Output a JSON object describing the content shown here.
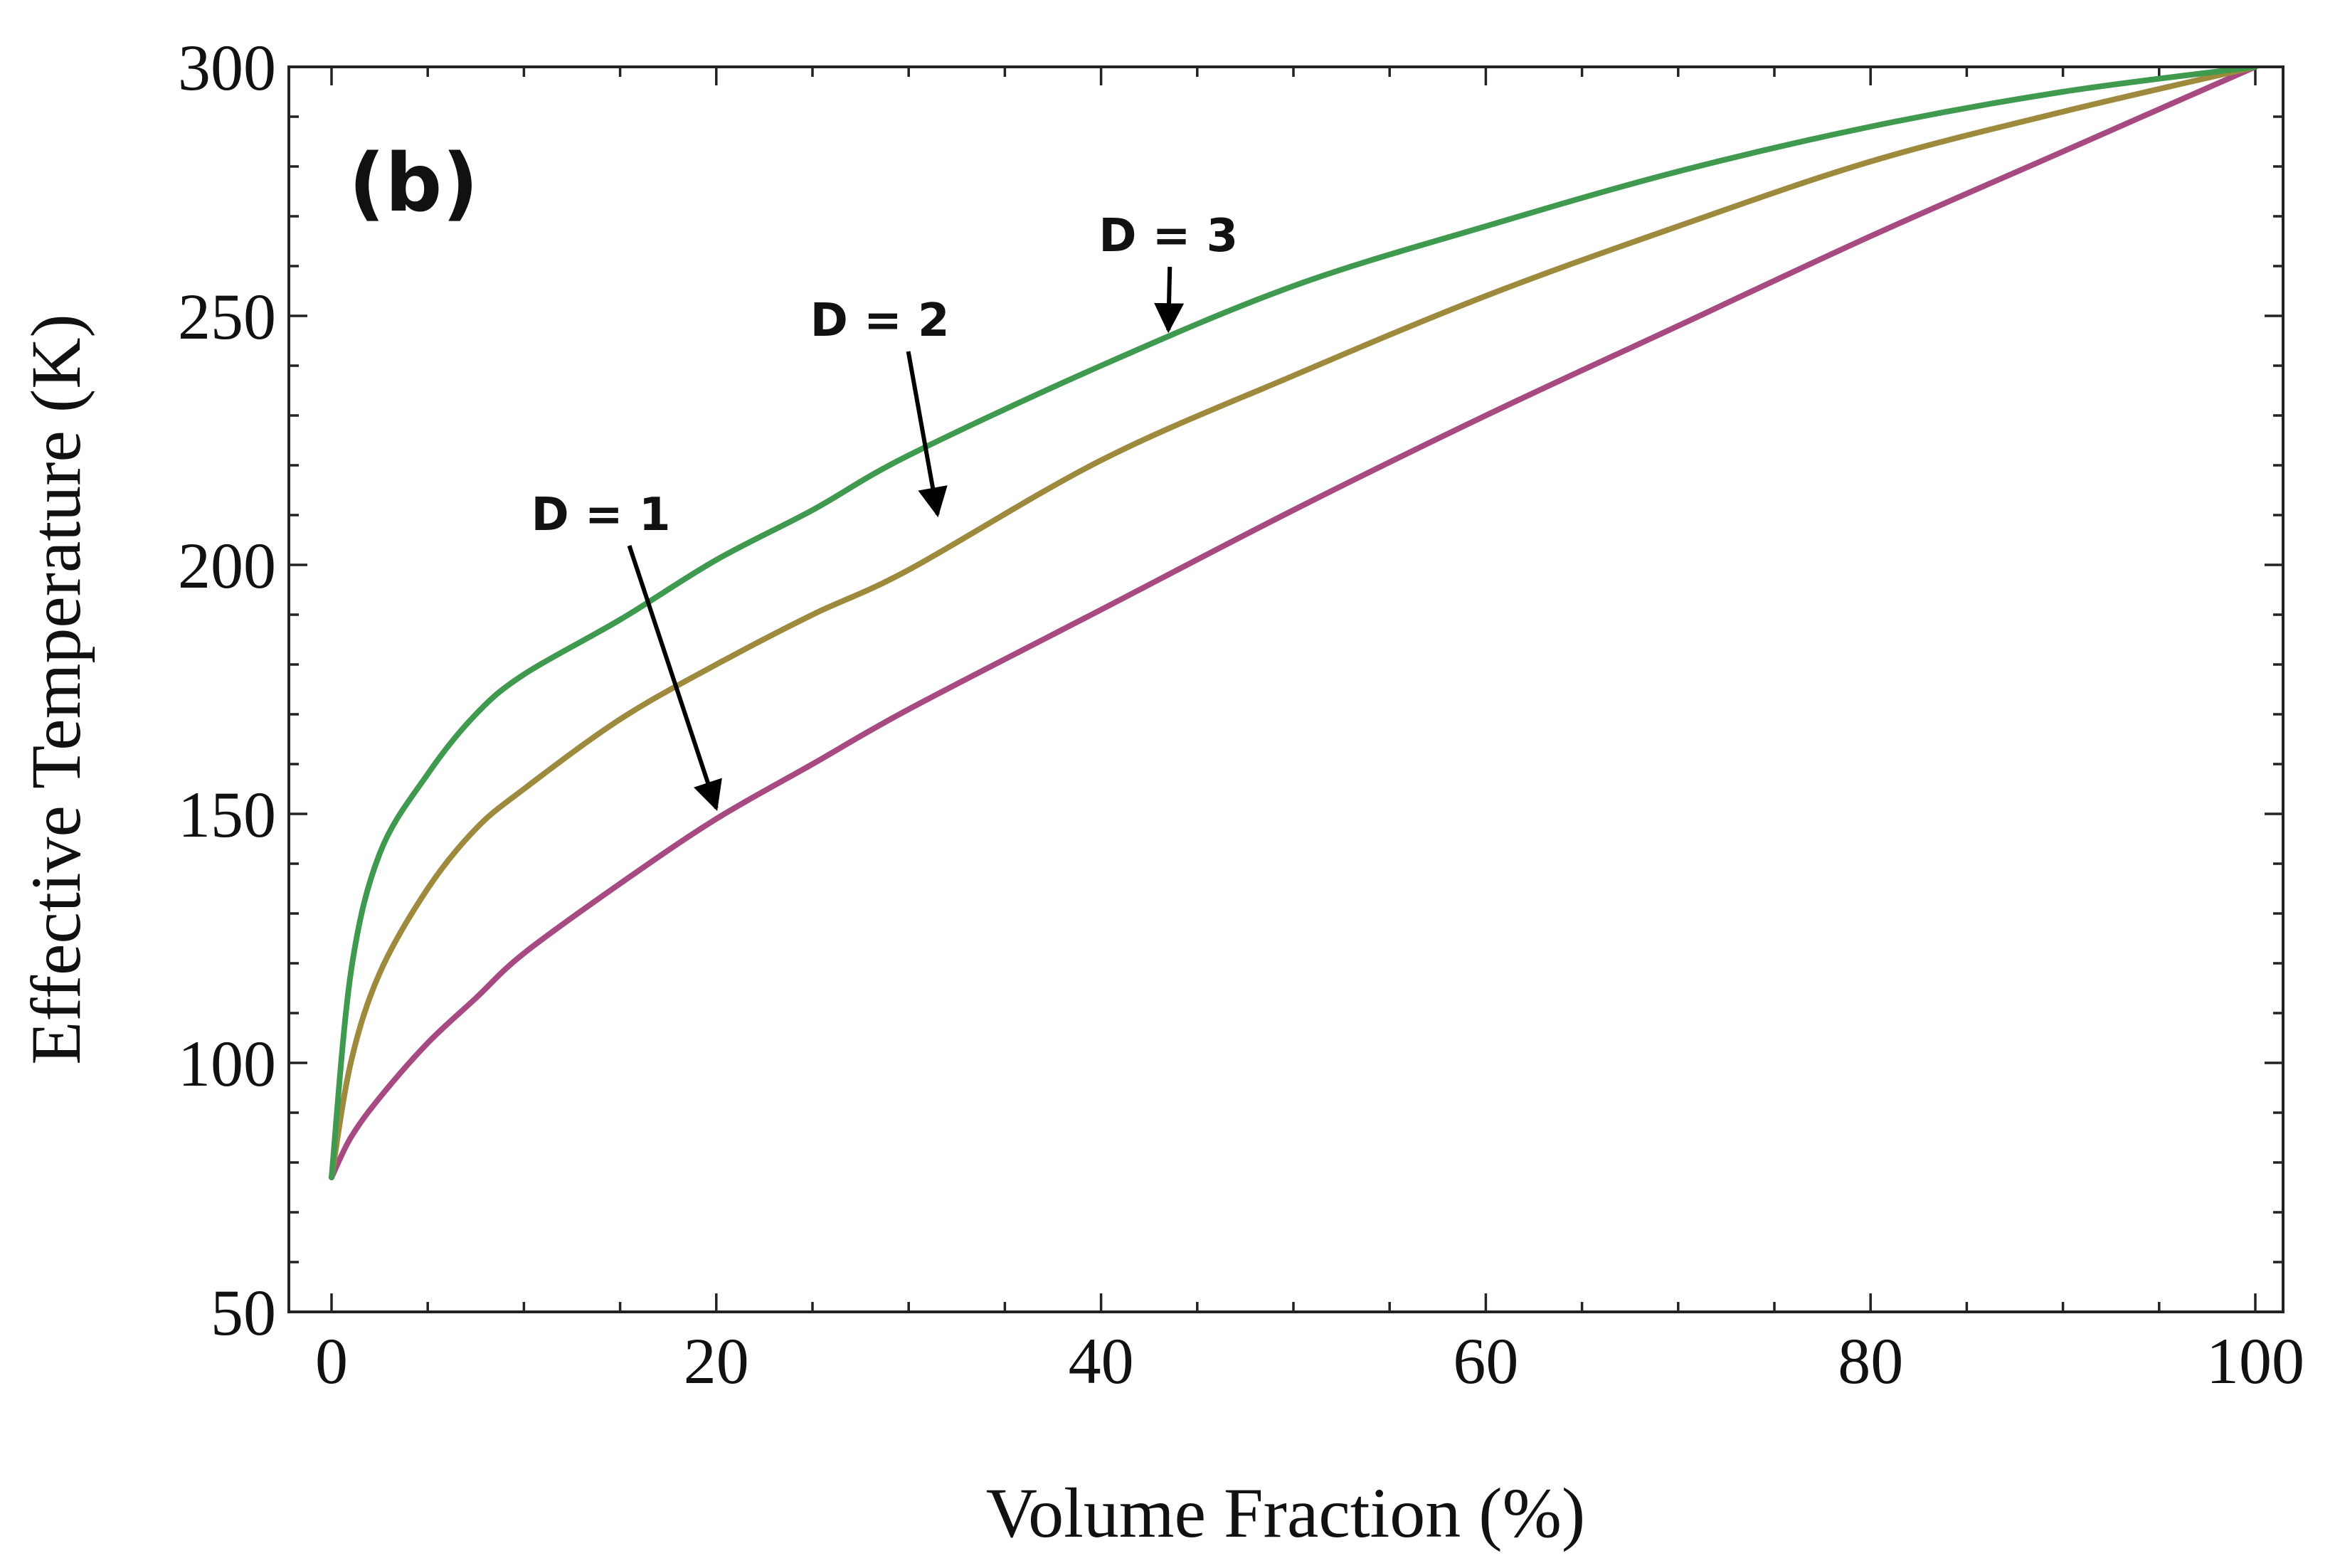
{
  "chart_data": {
    "type": "line",
    "panel_label": "(b)",
    "xlabel": "Volume Fraction (%)",
    "ylabel": "Effective  Temperature (K)",
    "xlim": [
      0,
      100
    ],
    "ylim": [
      50,
      300
    ],
    "xticks": [
      0,
      20,
      40,
      60,
      80,
      100
    ],
    "yticks": [
      50,
      100,
      150,
      200,
      250,
      300
    ],
    "grid": false,
    "series": [
      {
        "name": "D = 1",
        "color": "#a84a82",
        "x": [
          0,
          1,
          2.5,
          5,
          7.5,
          10,
          15,
          20,
          25,
          30,
          40,
          50,
          60,
          70,
          80,
          90,
          100
        ],
        "y": [
          77,
          85,
          93,
          104,
          113,
          122,
          136,
          149,
          160,
          171,
          191,
          211,
          230,
          248,
          266,
          283,
          300
        ]
      },
      {
        "name": "D = 2",
        "color": "#9e8a3c",
        "x": [
          0,
          1,
          2.5,
          5,
          7.5,
          10,
          15,
          20,
          25,
          30,
          40,
          50,
          60,
          70,
          80,
          90,
          100
        ],
        "y": [
          77,
          100,
          118,
          135,
          147,
          155,
          169,
          180,
          190,
          199,
          221,
          238,
          254,
          268,
          281,
          291,
          300
        ]
      },
      {
        "name": "D = 3",
        "color": "#3f9a4f",
        "x": [
          0,
          1,
          2.5,
          5,
          7.5,
          10,
          15,
          20,
          25,
          30,
          40,
          50,
          60,
          70,
          80,
          90,
          100
        ],
        "y": [
          77,
          118,
          142,
          158,
          170,
          178,
          189,
          201,
          211,
          222,
          240,
          256,
          268,
          279,
          288,
          295,
          300
        ]
      }
    ],
    "annotations": [
      {
        "text": "D = 1",
        "target_series": "D = 1",
        "x": 20,
        "y": 150,
        "text_x": 14,
        "text_y": 207
      },
      {
        "text": "D = 2",
        "target_series": "D = 2",
        "x": 31.5,
        "y": 209,
        "text_x": 28.5,
        "text_y": 246
      },
      {
        "text": "D = 3",
        "target_series": "D = 3",
        "x": 43.5,
        "y": 246,
        "text_x": 43.5,
        "text_y": 263
      }
    ]
  }
}
